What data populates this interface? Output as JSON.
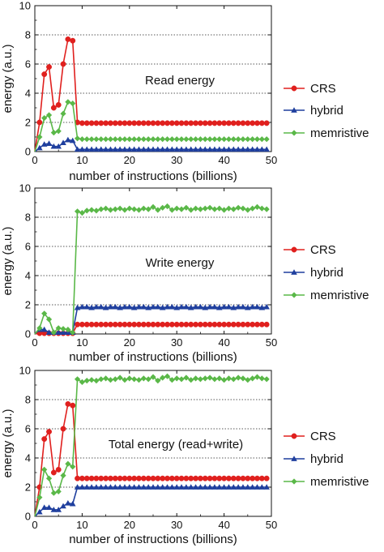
{
  "figure": {
    "x_ticks": [
      "0",
      "10",
      "20",
      "30",
      "40",
      "50"
    ],
    "y_ticks": [
      "0",
      "2",
      "4",
      "6",
      "8",
      "10"
    ]
  },
  "chart_data": [
    {
      "type": "line",
      "title": "",
      "annotation": "Read energy",
      "xlabel": "number of instructions (billions)",
      "ylabel": "energy (a.u.)",
      "xlim": [
        0,
        50
      ],
      "ylim": [
        0,
        10
      ],
      "grid": "dotted horizontal",
      "legend": "right",
      "series": [
        {
          "name": "CRS",
          "color": "#e0201e",
          "marker": "circle",
          "x": [
            1,
            2,
            3,
            4,
            5,
            6,
            7,
            8,
            9,
            10,
            11,
            12,
            13,
            14,
            15,
            16,
            17,
            18,
            19,
            20,
            21,
            22,
            23,
            24,
            25,
            26,
            27,
            28,
            29,
            30,
            31,
            32,
            33,
            34,
            35,
            36,
            37,
            38,
            39,
            40,
            41,
            42,
            43,
            44,
            45,
            46,
            47,
            48,
            49
          ],
          "y": [
            2.0,
            5.3,
            5.8,
            3.0,
            3.2,
            6.0,
            7.7,
            7.6,
            2.0,
            1.95,
            1.95,
            1.95,
            1.95,
            1.95,
            1.95,
            1.95,
            1.95,
            1.95,
            1.95,
            1.95,
            1.95,
            1.95,
            1.95,
            1.95,
            1.95,
            1.95,
            1.95,
            1.95,
            1.95,
            1.95,
            1.95,
            1.95,
            1.95,
            1.95,
            1.95,
            1.95,
            1.95,
            1.95,
            1.95,
            1.95,
            1.95,
            1.95,
            1.95,
            1.95,
            1.95,
            1.95,
            1.95,
            1.95,
            1.95
          ]
        },
        {
          "name": "hybrid",
          "color": "#1f3f9e",
          "marker": "triangle",
          "x": [
            1,
            2,
            3,
            4,
            5,
            6,
            7,
            8,
            9,
            10,
            11,
            12,
            13,
            14,
            15,
            16,
            17,
            18,
            19,
            20,
            21,
            22,
            23,
            24,
            25,
            26,
            27,
            28,
            29,
            30,
            31,
            32,
            33,
            34,
            35,
            36,
            37,
            38,
            39,
            40,
            41,
            42,
            43,
            44,
            45,
            46,
            47,
            48,
            49
          ],
          "y": [
            0.25,
            0.5,
            0.55,
            0.35,
            0.35,
            0.6,
            0.8,
            0.75,
            0.15,
            0.15,
            0.15,
            0.15,
            0.15,
            0.15,
            0.15,
            0.15,
            0.15,
            0.15,
            0.15,
            0.15,
            0.15,
            0.15,
            0.15,
            0.15,
            0.15,
            0.15,
            0.15,
            0.15,
            0.15,
            0.15,
            0.15,
            0.15,
            0.15,
            0.15,
            0.15,
            0.15,
            0.15,
            0.15,
            0.15,
            0.15,
            0.15,
            0.15,
            0.15,
            0.15,
            0.15,
            0.15,
            0.15,
            0.15,
            0.15
          ]
        },
        {
          "name": "memristive",
          "color": "#5ab848",
          "marker": "diamond",
          "x": [
            1,
            2,
            3,
            4,
            5,
            6,
            7,
            8,
            9,
            10,
            11,
            12,
            13,
            14,
            15,
            16,
            17,
            18,
            19,
            20,
            21,
            22,
            23,
            24,
            25,
            26,
            27,
            28,
            29,
            30,
            31,
            32,
            33,
            34,
            35,
            36,
            37,
            38,
            39,
            40,
            41,
            42,
            43,
            44,
            45,
            46,
            47,
            48,
            49
          ],
          "y": [
            1.0,
            2.3,
            2.5,
            1.3,
            1.4,
            2.6,
            3.4,
            3.3,
            0.9,
            0.85,
            0.85,
            0.85,
            0.85,
            0.85,
            0.85,
            0.85,
            0.85,
            0.85,
            0.85,
            0.85,
            0.85,
            0.85,
            0.85,
            0.85,
            0.85,
            0.85,
            0.85,
            0.85,
            0.85,
            0.85,
            0.85,
            0.85,
            0.85,
            0.85,
            0.85,
            0.85,
            0.85,
            0.85,
            0.85,
            0.85,
            0.85,
            0.85,
            0.85,
            0.85,
            0.85,
            0.85,
            0.85,
            0.85,
            0.85
          ]
        }
      ]
    },
    {
      "type": "line",
      "title": "",
      "annotation": "Write energy",
      "xlabel": "number of instructions (billions)",
      "ylabel": "energy (a.u.)",
      "xlim": [
        0,
        50
      ],
      "ylim": [
        0,
        10
      ],
      "grid": "dotted horizontal",
      "legend": "right",
      "series": [
        {
          "name": "CRS",
          "color": "#e0201e",
          "marker": "circle",
          "x": [
            1,
            2,
            3,
            4,
            5,
            6,
            7,
            8,
            9,
            10,
            11,
            12,
            13,
            14,
            15,
            16,
            17,
            18,
            19,
            20,
            21,
            22,
            23,
            24,
            25,
            26,
            27,
            28,
            29,
            30,
            31,
            32,
            33,
            34,
            35,
            36,
            37,
            38,
            39,
            40,
            41,
            42,
            43,
            44,
            45,
            46,
            47,
            48,
            49
          ],
          "y": [
            0.05,
            0.05,
            0.05,
            0.05,
            0.05,
            0.05,
            0.05,
            0.05,
            0.65,
            0.65,
            0.65,
            0.65,
            0.65,
            0.65,
            0.65,
            0.65,
            0.65,
            0.65,
            0.65,
            0.65,
            0.65,
            0.65,
            0.65,
            0.65,
            0.65,
            0.65,
            0.65,
            0.65,
            0.65,
            0.65,
            0.65,
            0.65,
            0.65,
            0.65,
            0.65,
            0.65,
            0.65,
            0.65,
            0.65,
            0.65,
            0.65,
            0.65,
            0.65,
            0.65,
            0.65,
            0.65,
            0.65,
            0.65,
            0.65
          ]
        },
        {
          "name": "hybrid",
          "color": "#1f3f9e",
          "marker": "triangle",
          "x": [
            1,
            2,
            3,
            4,
            5,
            6,
            7,
            8,
            9,
            10,
            11,
            12,
            13,
            14,
            15,
            16,
            17,
            18,
            19,
            20,
            21,
            22,
            23,
            24,
            25,
            26,
            27,
            28,
            29,
            30,
            31,
            32,
            33,
            34,
            35,
            36,
            37,
            38,
            39,
            40,
            41,
            42,
            43,
            44,
            45,
            46,
            47,
            48,
            49
          ],
          "y": [
            0.3,
            0.3,
            0.1,
            0.1,
            0.1,
            0.1,
            0.1,
            0.1,
            1.8,
            1.85,
            1.85,
            1.8,
            1.85,
            1.85,
            1.8,
            1.85,
            1.85,
            1.8,
            1.85,
            1.85,
            1.8,
            1.85,
            1.85,
            1.8,
            1.85,
            1.85,
            1.8,
            1.85,
            1.85,
            1.8,
            1.85,
            1.85,
            1.8,
            1.85,
            1.85,
            1.8,
            1.85,
            1.85,
            1.8,
            1.85,
            1.85,
            1.8,
            1.85,
            1.85,
            1.8,
            1.85,
            1.85,
            1.8,
            1.85
          ]
        },
        {
          "name": "memristive",
          "color": "#5ab848",
          "marker": "diamond",
          "x": [
            1,
            2,
            3,
            4,
            5,
            6,
            7,
            8,
            9,
            10,
            11,
            12,
            13,
            14,
            15,
            16,
            17,
            18,
            19,
            20,
            21,
            22,
            23,
            24,
            25,
            26,
            27,
            28,
            29,
            30,
            31,
            32,
            33,
            34,
            35,
            36,
            37,
            38,
            39,
            40,
            41,
            42,
            43,
            44,
            45,
            46,
            47,
            48,
            49
          ],
          "y": [
            0.4,
            1.4,
            1.0,
            0.1,
            0.4,
            0.35,
            0.3,
            0.1,
            8.4,
            8.3,
            8.45,
            8.5,
            8.45,
            8.55,
            8.6,
            8.5,
            8.55,
            8.6,
            8.5,
            8.6,
            8.55,
            8.5,
            8.6,
            8.55,
            8.7,
            8.5,
            8.65,
            8.75,
            8.5,
            8.6,
            8.55,
            8.65,
            8.5,
            8.6,
            8.55,
            8.6,
            8.65,
            8.55,
            8.6,
            8.5,
            8.6,
            8.55,
            8.65,
            8.6,
            8.5,
            8.6,
            8.7,
            8.6,
            8.55
          ]
        }
      ]
    },
    {
      "type": "line",
      "title": "",
      "annotation": "Total energy (read+write)",
      "xlabel": "number of instructions (billions)",
      "ylabel": "energy (a.u.)",
      "xlim": [
        0,
        50
      ],
      "ylim": [
        0,
        10
      ],
      "grid": "dotted horizontal",
      "legend": "right",
      "series": [
        {
          "name": "CRS",
          "color": "#e0201e",
          "marker": "circle",
          "x": [
            1,
            2,
            3,
            4,
            5,
            6,
            7,
            8,
            9,
            10,
            11,
            12,
            13,
            14,
            15,
            16,
            17,
            18,
            19,
            20,
            21,
            22,
            23,
            24,
            25,
            26,
            27,
            28,
            29,
            30,
            31,
            32,
            33,
            34,
            35,
            36,
            37,
            38,
            39,
            40,
            41,
            42,
            43,
            44,
            45,
            46,
            47,
            48,
            49
          ],
          "y": [
            2.0,
            5.3,
            5.8,
            3.0,
            3.2,
            6.0,
            7.7,
            7.6,
            2.6,
            2.6,
            2.6,
            2.6,
            2.6,
            2.6,
            2.6,
            2.6,
            2.6,
            2.6,
            2.6,
            2.6,
            2.6,
            2.6,
            2.6,
            2.6,
            2.6,
            2.6,
            2.6,
            2.6,
            2.6,
            2.6,
            2.6,
            2.6,
            2.6,
            2.6,
            2.6,
            2.6,
            2.6,
            2.6,
            2.6,
            2.6,
            2.6,
            2.6,
            2.6,
            2.6,
            2.6,
            2.6,
            2.6,
            2.6,
            2.6
          ]
        },
        {
          "name": "hybrid",
          "color": "#1f3f9e",
          "marker": "triangle",
          "x": [
            1,
            2,
            3,
            4,
            5,
            6,
            7,
            8,
            9,
            10,
            11,
            12,
            13,
            14,
            15,
            16,
            17,
            18,
            19,
            20,
            21,
            22,
            23,
            24,
            25,
            26,
            27,
            28,
            29,
            30,
            31,
            32,
            33,
            34,
            35,
            36,
            37,
            38,
            39,
            40,
            41,
            42,
            43,
            44,
            45,
            46,
            47,
            48,
            49
          ],
          "y": [
            0.3,
            0.6,
            0.6,
            0.45,
            0.45,
            0.7,
            0.9,
            0.85,
            2.0,
            2.0,
            2.0,
            2.0,
            2.0,
            2.0,
            2.0,
            2.0,
            2.0,
            2.0,
            2.0,
            2.0,
            2.0,
            2.0,
            2.0,
            2.0,
            2.0,
            2.0,
            2.0,
            2.0,
            2.0,
            2.0,
            2.0,
            2.0,
            2.0,
            2.0,
            2.0,
            2.0,
            2.0,
            2.0,
            2.0,
            2.0,
            2.0,
            2.0,
            2.0,
            2.0,
            2.0,
            2.0,
            2.0,
            2.0,
            2.0
          ]
        },
        {
          "name": "memristive",
          "color": "#5ab848",
          "marker": "diamond",
          "x": [
            1,
            2,
            3,
            4,
            5,
            6,
            7,
            8,
            9,
            10,
            11,
            12,
            13,
            14,
            15,
            16,
            17,
            18,
            19,
            20,
            21,
            22,
            23,
            24,
            25,
            26,
            27,
            28,
            29,
            30,
            31,
            32,
            33,
            34,
            35,
            36,
            37,
            38,
            39,
            40,
            41,
            42,
            43,
            44,
            45,
            46,
            47,
            48,
            49
          ],
          "y": [
            1.3,
            3.2,
            2.6,
            1.6,
            1.7,
            2.8,
            3.6,
            3.4,
            9.4,
            9.2,
            9.3,
            9.35,
            9.3,
            9.4,
            9.45,
            9.35,
            9.4,
            9.5,
            9.35,
            9.45,
            9.4,
            9.35,
            9.45,
            9.4,
            9.55,
            9.3,
            9.5,
            9.6,
            9.35,
            9.45,
            9.4,
            9.5,
            9.35,
            9.45,
            9.4,
            9.45,
            9.5,
            9.4,
            9.45,
            9.35,
            9.45,
            9.4,
            9.5,
            9.45,
            9.35,
            9.45,
            9.55,
            9.45,
            9.4
          ]
        }
      ]
    }
  ]
}
